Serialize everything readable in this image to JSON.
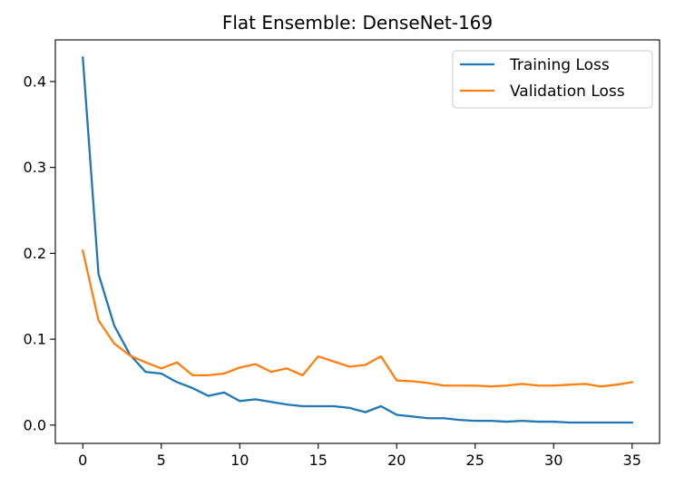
{
  "chart_data": {
    "type": "line",
    "title": "Flat Ensemble: DenseNet-169",
    "xlabel": "",
    "ylabel": "",
    "xlim": [
      -1.75,
      36.75
    ],
    "ylim": [
      -0.0213,
      0.4485
    ],
    "xticks": [
      0,
      5,
      10,
      15,
      20,
      25,
      30,
      35
    ],
    "xtick_labels": [
      "0",
      "5",
      "10",
      "15",
      "20",
      "25",
      "30",
      "35"
    ],
    "yticks": [
      0.0,
      0.1,
      0.2,
      0.3,
      0.4
    ],
    "ytick_labels": [
      "0.0",
      "0.1",
      "0.2",
      "0.3",
      "0.4"
    ],
    "grid": false,
    "legend_position": "top-right",
    "x": [
      0,
      1,
      2,
      3,
      4,
      5,
      6,
      7,
      8,
      9,
      10,
      11,
      12,
      13,
      14,
      15,
      16,
      17,
      18,
      19,
      20,
      21,
      22,
      23,
      24,
      25,
      26,
      27,
      28,
      29,
      30,
      31,
      32,
      33,
      34,
      35
    ],
    "series": [
      {
        "name": "Training Loss",
        "color": "#1f77b4",
        "values": [
          0.428,
          0.176,
          0.116,
          0.082,
          0.062,
          0.06,
          0.05,
          0.043,
          0.034,
          0.038,
          0.028,
          0.03,
          0.027,
          0.024,
          0.022,
          0.022,
          0.022,
          0.02,
          0.015,
          0.022,
          0.012,
          0.01,
          0.008,
          0.008,
          0.006,
          0.005,
          0.005,
          0.004,
          0.005,
          0.004,
          0.004,
          0.003,
          0.003,
          0.003,
          0.003,
          0.003
        ]
      },
      {
        "name": "Validation Loss",
        "color": "#ff7f0e",
        "values": [
          0.203,
          0.122,
          0.095,
          0.081,
          0.073,
          0.066,
          0.073,
          0.058,
          0.058,
          0.06,
          0.067,
          0.071,
          0.062,
          0.066,
          0.058,
          0.08,
          0.074,
          0.068,
          0.07,
          0.08,
          0.052,
          0.051,
          0.049,
          0.046,
          0.046,
          0.046,
          0.045,
          0.046,
          0.048,
          0.046,
          0.046,
          0.047,
          0.048,
          0.045,
          0.047,
          0.05
        ]
      }
    ]
  }
}
